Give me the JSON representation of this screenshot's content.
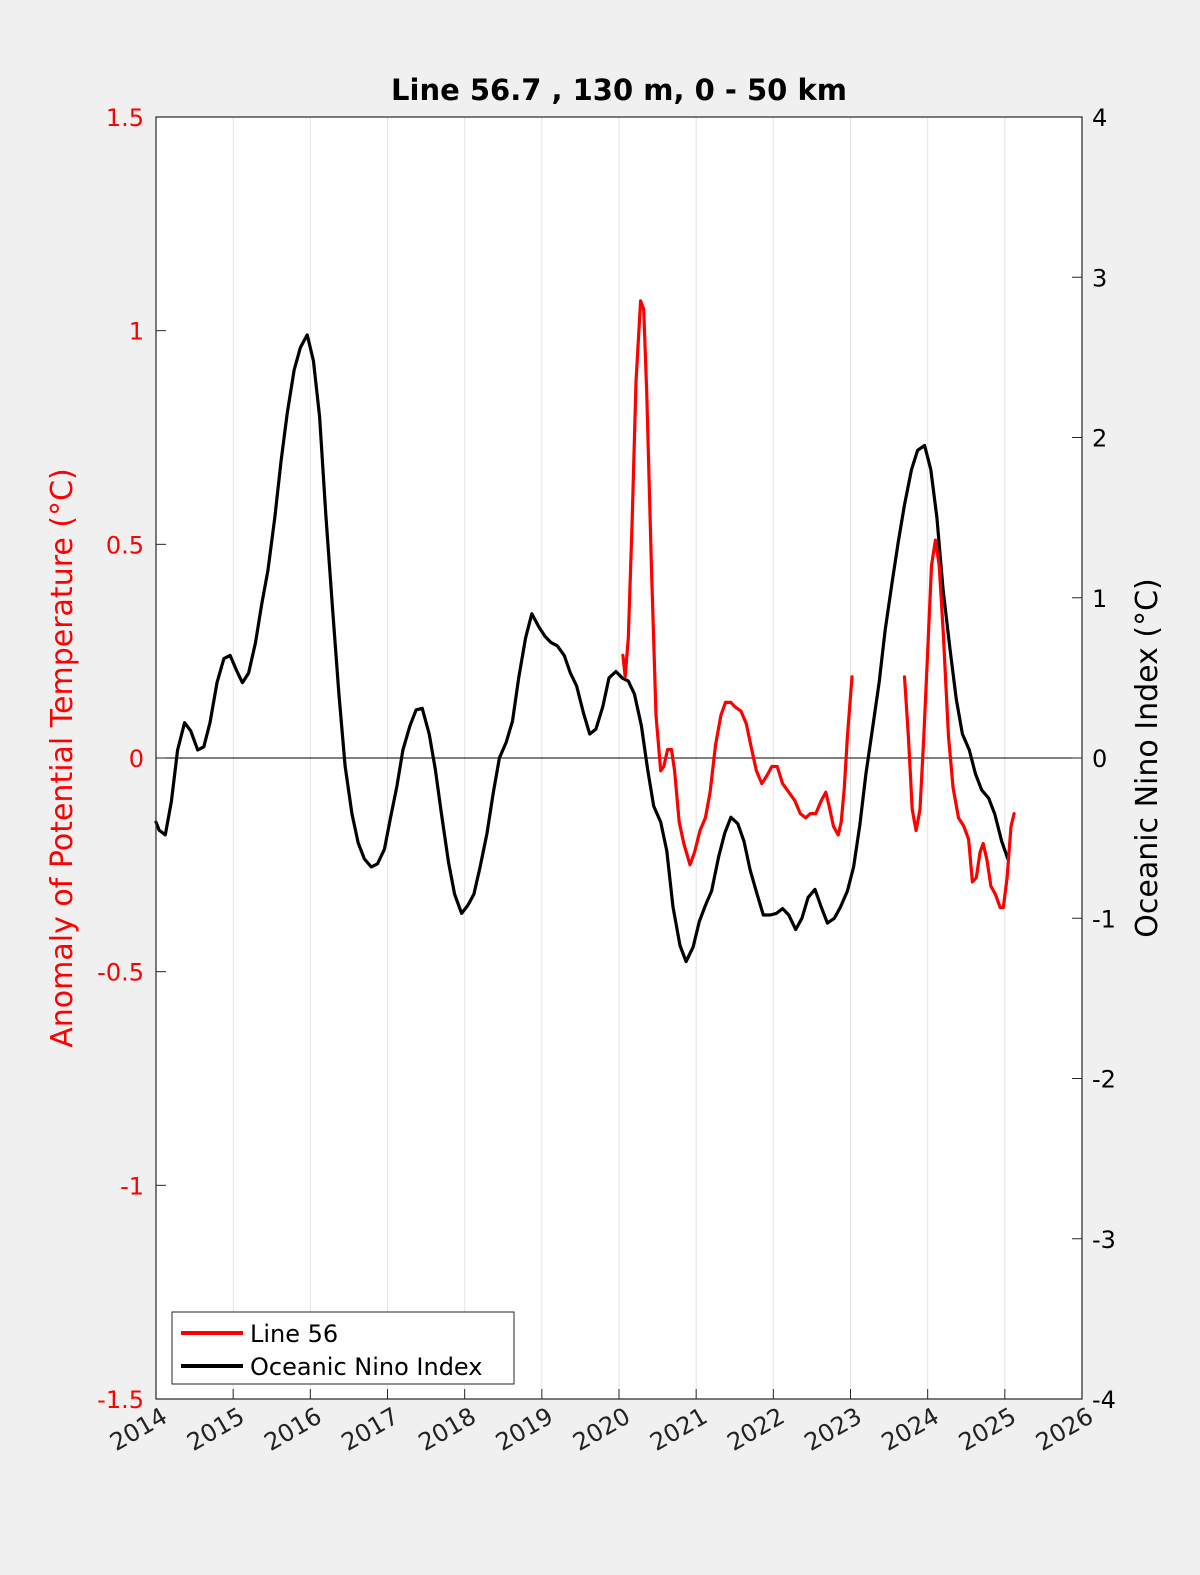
{
  "chart_data": {
    "type": "line",
    "title": "Line 56.7 , 130 m, 0 - 50 km",
    "xlim": [
      2014,
      2026
    ],
    "x_ticks": [
      "2014",
      "2015",
      "2016",
      "2017",
      "2018",
      "2019",
      "2020",
      "2021",
      "2022",
      "2023",
      "2024",
      "2025",
      "2026"
    ],
    "y_left": {
      "label": "Anomaly of Potential Temperature (°C)",
      "lim": [
        -1.5,
        1.5
      ],
      "ticks": [
        "-1.5",
        "-1",
        "-0.5",
        "0",
        "0.5",
        "1",
        "1.5"
      ],
      "color": "#ff0000"
    },
    "y_right": {
      "label": "Oceanic Nino Index (°C)",
      "lim": [
        -4,
        4
      ],
      "ticks": [
        "-4",
        "-3",
        "-2",
        "-1",
        "0",
        "1",
        "2",
        "3",
        "4"
      ],
      "color": "#000000"
    },
    "grid": "vertical",
    "zero_line": true,
    "legend": {
      "position": "bottom-left",
      "entries": [
        {
          "label": "Line 56",
          "color": "#ff0000"
        },
        {
          "label": "Oceanic Nino Index",
          "color": "#000000"
        }
      ]
    },
    "series": [
      {
        "name": "Line 56",
        "axis": "left",
        "color": "#ff0000",
        "segments": [
          [
            [
              2020.05,
              0.24
            ],
            [
              2020.08,
              0.19
            ],
            [
              2020.12,
              0.28
            ],
            [
              2020.17,
              0.55
            ],
            [
              2020.22,
              0.88
            ],
            [
              2020.28,
              1.07
            ],
            [
              2020.32,
              1.05
            ],
            [
              2020.36,
              0.85
            ],
            [
              2020.42,
              0.45
            ],
            [
              2020.48,
              0.1
            ],
            [
              2020.54,
              -0.03
            ],
            [
              2020.58,
              -0.02
            ],
            [
              2020.63,
              0.02
            ],
            [
              2020.68,
              0.02
            ],
            [
              2020.72,
              -0.03
            ],
            [
              2020.78,
              -0.15
            ],
            [
              2020.84,
              -0.2
            ],
            [
              2020.92,
              -0.25
            ],
            [
              2020.98,
              -0.22
            ],
            [
              2021.05,
              -0.17
            ],
            [
              2021.12,
              -0.14
            ],
            [
              2021.18,
              -0.08
            ],
            [
              2021.25,
              0.03
            ],
            [
              2021.32,
              0.1
            ],
            [
              2021.38,
              0.13
            ],
            [
              2021.45,
              0.13
            ],
            [
              2021.5,
              0.12
            ],
            [
              2021.58,
              0.11
            ],
            [
              2021.65,
              0.08
            ],
            [
              2021.72,
              0.02
            ],
            [
              2021.78,
              -0.03
            ],
            [
              2021.85,
              -0.06
            ],
            [
              2021.92,
              -0.04
            ],
            [
              2021.98,
              -0.02
            ],
            [
              2022.05,
              -0.02
            ],
            [
              2022.12,
              -0.06
            ],
            [
              2022.2,
              -0.08
            ],
            [
              2022.28,
              -0.1
            ],
            [
              2022.35,
              -0.13
            ],
            [
              2022.42,
              -0.14
            ],
            [
              2022.48,
              -0.13
            ],
            [
              2022.55,
              -0.13
            ],
            [
              2022.62,
              -0.1
            ],
            [
              2022.68,
              -0.08
            ],
            [
              2022.72,
              -0.11
            ],
            [
              2022.78,
              -0.16
            ],
            [
              2022.84,
              -0.18
            ],
            [
              2022.88,
              -0.15
            ],
            [
              2022.92,
              -0.07
            ],
            [
              2022.96,
              0.05
            ],
            [
              2023.02,
              0.19
            ]
          ],
          [
            [
              2023.7,
              0.19
            ],
            [
              2023.75,
              0.05
            ],
            [
              2023.8,
              -0.12
            ],
            [
              2023.85,
              -0.17
            ],
            [
              2023.9,
              -0.12
            ],
            [
              2023.95,
              0.05
            ],
            [
              2024.0,
              0.25
            ],
            [
              2024.05,
              0.45
            ],
            [
              2024.1,
              0.51
            ],
            [
              2024.15,
              0.45
            ],
            [
              2024.2,
              0.3
            ],
            [
              2024.27,
              0.05
            ],
            [
              2024.33,
              -0.07
            ],
            [
              2024.4,
              -0.14
            ],
            [
              2024.47,
              -0.16
            ],
            [
              2024.53,
              -0.19
            ],
            [
              2024.58,
              -0.29
            ],
            [
              2024.63,
              -0.28
            ],
            [
              2024.68,
              -0.22
            ],
            [
              2024.72,
              -0.2
            ],
            [
              2024.77,
              -0.24
            ],
            [
              2024.82,
              -0.3
            ],
            [
              2024.88,
              -0.32
            ],
            [
              2024.94,
              -0.35
            ],
            [
              2024.98,
              -0.35
            ],
            [
              2025.03,
              -0.28
            ],
            [
              2025.08,
              -0.16
            ],
            [
              2025.12,
              -0.13
            ]
          ]
        ]
      },
      {
        "name": "Oceanic Nino Index",
        "axis": "right",
        "color": "#000000",
        "segments": [
          [
            [
              2014.0,
              -0.4
            ],
            [
              2014.04,
              -0.45
            ],
            [
              2014.12,
              -0.48
            ],
            [
              2014.2,
              -0.27
            ],
            [
              2014.28,
              0.05
            ],
            [
              2014.37,
              0.22
            ],
            [
              2014.45,
              0.17
            ],
            [
              2014.54,
              0.05
            ],
            [
              2014.62,
              0.07
            ],
            [
              2014.7,
              0.22
            ],
            [
              2014.79,
              0.47
            ],
            [
              2014.88,
              0.62
            ],
            [
              2014.96,
              0.64
            ],
            [
              2015.04,
              0.55
            ],
            [
              2015.12,
              0.47
            ],
            [
              2015.2,
              0.53
            ],
            [
              2015.29,
              0.72
            ],
            [
              2015.37,
              0.96
            ],
            [
              2015.45,
              1.17
            ],
            [
              2015.54,
              1.5
            ],
            [
              2015.62,
              1.85
            ],
            [
              2015.7,
              2.15
            ],
            [
              2015.79,
              2.42
            ],
            [
              2015.87,
              2.56
            ],
            [
              2015.96,
              2.64
            ],
            [
              2016.04,
              2.48
            ],
            [
              2016.12,
              2.13
            ],
            [
              2016.2,
              1.52
            ],
            [
              2016.29,
              0.92
            ],
            [
              2016.37,
              0.4
            ],
            [
              2016.45,
              -0.05
            ],
            [
              2016.54,
              -0.35
            ],
            [
              2016.62,
              -0.53
            ],
            [
              2016.7,
              -0.63
            ],
            [
              2016.79,
              -0.68
            ],
            [
              2016.87,
              -0.66
            ],
            [
              2016.96,
              -0.57
            ],
            [
              2017.04,
              -0.37
            ],
            [
              2017.12,
              -0.18
            ],
            [
              2017.2,
              0.05
            ],
            [
              2017.29,
              0.2
            ],
            [
              2017.37,
              0.3
            ],
            [
              2017.45,
              0.31
            ],
            [
              2017.54,
              0.15
            ],
            [
              2017.62,
              -0.07
            ],
            [
              2017.7,
              -0.35
            ],
            [
              2017.79,
              -0.65
            ],
            [
              2017.87,
              -0.85
            ],
            [
              2017.96,
              -0.97
            ],
            [
              2018.04,
              -0.92
            ],
            [
              2018.12,
              -0.85
            ],
            [
              2018.2,
              -0.68
            ],
            [
              2018.29,
              -0.47
            ],
            [
              2018.37,
              -0.22
            ],
            [
              2018.45,
              0.0
            ],
            [
              2018.54,
              0.1
            ],
            [
              2018.62,
              0.23
            ],
            [
              2018.7,
              0.5
            ],
            [
              2018.79,
              0.75
            ],
            [
              2018.87,
              0.9
            ],
            [
              2018.96,
              0.82
            ],
            [
              2019.04,
              0.76
            ],
            [
              2019.12,
              0.72
            ],
            [
              2019.2,
              0.7
            ],
            [
              2019.29,
              0.64
            ],
            [
              2019.37,
              0.53
            ],
            [
              2019.45,
              0.45
            ],
            [
              2019.54,
              0.28
            ],
            [
              2019.62,
              0.15
            ],
            [
              2019.7,
              0.18
            ],
            [
              2019.79,
              0.32
            ],
            [
              2019.87,
              0.5
            ],
            [
              2019.96,
              0.54
            ],
            [
              2020.04,
              0.5
            ],
            [
              2020.12,
              0.48
            ],
            [
              2020.2,
              0.4
            ],
            [
              2020.29,
              0.2
            ],
            [
              2020.37,
              -0.07
            ],
            [
              2020.45,
              -0.3
            ],
            [
              2020.54,
              -0.4
            ],
            [
              2020.62,
              -0.58
            ],
            [
              2020.7,
              -0.93
            ],
            [
              2020.79,
              -1.17
            ],
            [
              2020.87,
              -1.27
            ],
            [
              2020.96,
              -1.18
            ],
            [
              2021.04,
              -1.02
            ],
            [
              2021.12,
              -0.92
            ],
            [
              2021.2,
              -0.83
            ],
            [
              2021.29,
              -0.62
            ],
            [
              2021.37,
              -0.47
            ],
            [
              2021.45,
              -0.37
            ],
            [
              2021.54,
              -0.41
            ],
            [
              2021.62,
              -0.52
            ],
            [
              2021.7,
              -0.7
            ],
            [
              2021.79,
              -0.85
            ],
            [
              2021.87,
              -0.98
            ],
            [
              2021.96,
              -0.98
            ],
            [
              2022.04,
              -0.97
            ],
            [
              2022.12,
              -0.94
            ],
            [
              2022.2,
              -0.98
            ],
            [
              2022.29,
              -1.07
            ],
            [
              2022.37,
              -1.0
            ],
            [
              2022.45,
              -0.87
            ],
            [
              2022.54,
              -0.82
            ],
            [
              2022.62,
              -0.93
            ],
            [
              2022.7,
              -1.03
            ],
            [
              2022.79,
              -1.0
            ],
            [
              2022.87,
              -0.93
            ],
            [
              2022.96,
              -0.83
            ],
            [
              2023.04,
              -0.68
            ],
            [
              2023.12,
              -0.42
            ],
            [
              2023.2,
              -0.1
            ],
            [
              2023.29,
              0.2
            ],
            [
              2023.37,
              0.47
            ],
            [
              2023.45,
              0.8
            ],
            [
              2023.54,
              1.1
            ],
            [
              2023.62,
              1.35
            ],
            [
              2023.7,
              1.58
            ],
            [
              2023.79,
              1.8
            ],
            [
              2023.87,
              1.92
            ],
            [
              2023.96,
              1.95
            ],
            [
              2024.04,
              1.8
            ],
            [
              2024.12,
              1.5
            ],
            [
              2024.2,
              1.05
            ],
            [
              2024.29,
              0.68
            ],
            [
              2024.37,
              0.37
            ],
            [
              2024.45,
              0.15
            ],
            [
              2024.54,
              0.05
            ],
            [
              2024.62,
              -0.1
            ],
            [
              2024.7,
              -0.2
            ],
            [
              2024.79,
              -0.25
            ],
            [
              2024.87,
              -0.35
            ],
            [
              2024.96,
              -0.52
            ],
            [
              2025.04,
              -0.63
            ]
          ]
        ]
      }
    ]
  }
}
